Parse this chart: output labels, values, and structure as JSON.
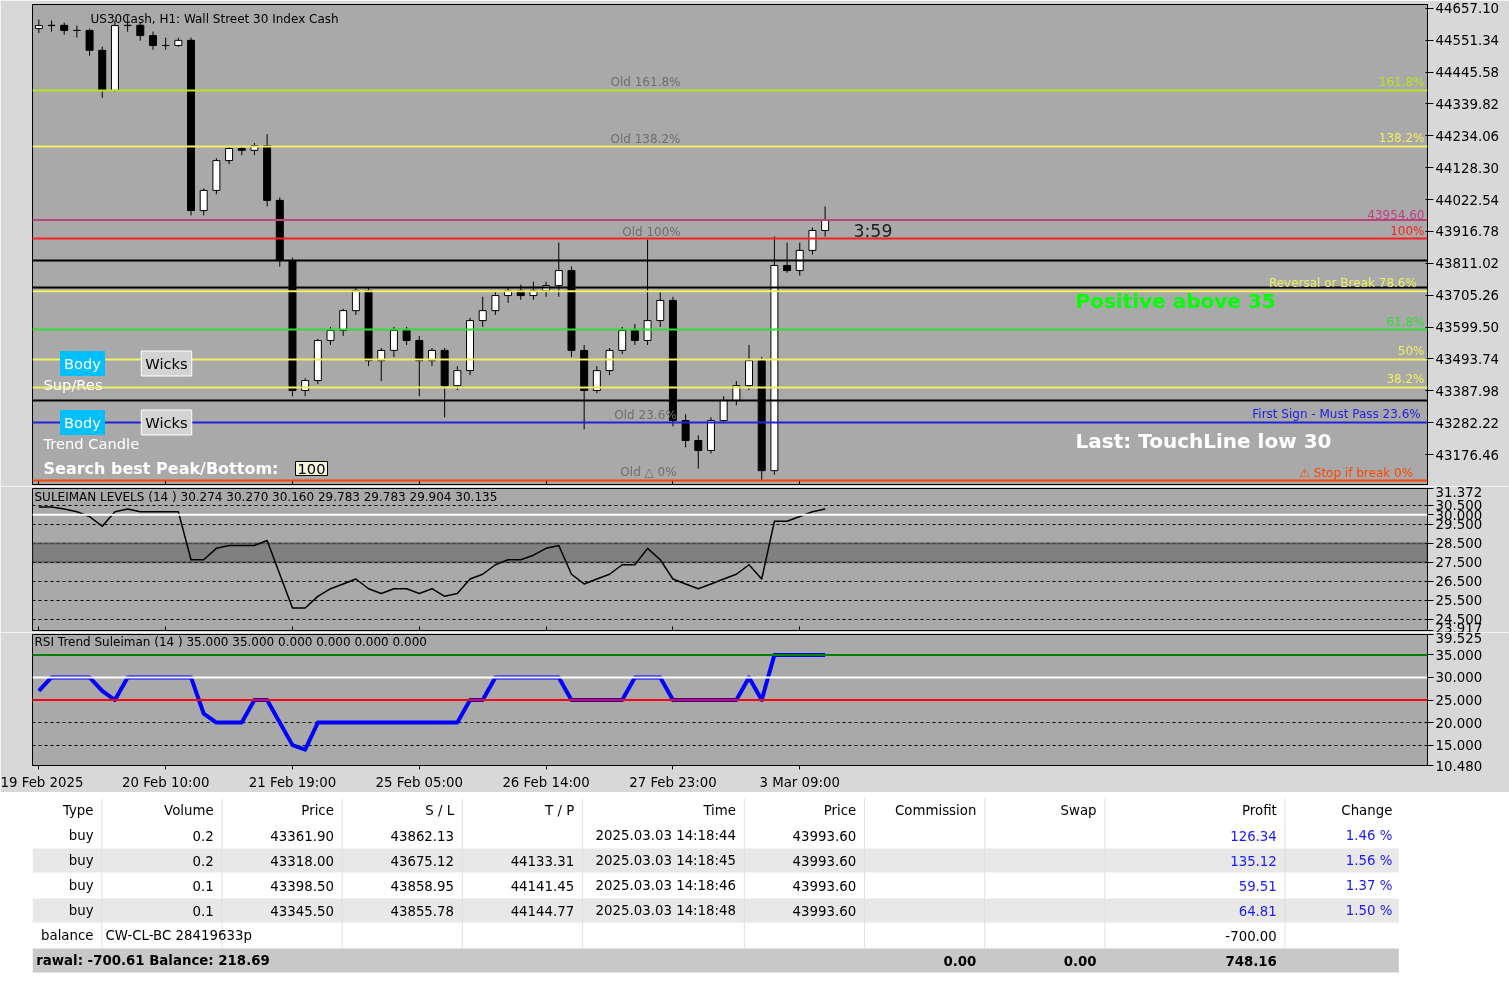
{
  "chart_data": [
    {
      "type": "candlestick",
      "title": "US30Cash, H1:  Wall Street 30 Index Cash",
      "categories": [
        "19 Feb 2025",
        null,
        null,
        null,
        null,
        null,
        null,
        null,
        null,
        null,
        "20 Feb 10:00",
        null,
        null,
        null,
        null,
        null,
        null,
        null,
        null,
        null,
        "21 Feb 19:00",
        null,
        null,
        null,
        null,
        null,
        null,
        null,
        null,
        null,
        "25 Feb 05:00",
        null,
        null,
        null,
        null,
        null,
        null,
        null,
        null,
        null,
        "26 Feb 14:00",
        null,
        null,
        null,
        null,
        null,
        null,
        null,
        null,
        null,
        "27 Feb 23:00",
        null,
        null,
        null,
        null,
        null,
        null,
        null,
        null,
        null,
        "3 Mar 09:00",
        null,
        null,
        null,
        null,
        null,
        null,
        null,
        null,
        null,
        null,
        null,
        null,
        null,
        null,
        null,
        null,
        null,
        null,
        null,
        null,
        null,
        null,
        null,
        null,
        null,
        null,
        null,
        null,
        null,
        null,
        null,
        null,
        null,
        null,
        null,
        null,
        null,
        null,
        null,
        null,
        null,
        null,
        null,
        null,
        null,
        null,
        null,
        null,
        null
      ],
      "ohlc": [
        [
          44590,
          44620,
          44575,
          44600
        ],
        [
          44600,
          44617,
          44580,
          44601
        ],
        [
          44601,
          44610,
          44570,
          44584
        ],
        [
          44584,
          44600,
          44560,
          44584
        ],
        [
          44584,
          44590,
          44500,
          44518
        ],
        [
          44518,
          44530,
          44360,
          44385
        ],
        [
          44385,
          44617,
          44380,
          44600
        ],
        [
          44600,
          44634,
          44580,
          44601
        ],
        [
          44601,
          44610,
          44550,
          44567
        ],
        [
          44567,
          44580,
          44520,
          44534
        ],
        [
          44534,
          44560,
          44520,
          44534
        ],
        [
          44534,
          44560,
          44530,
          44551
        ],
        [
          44551,
          44560,
          43970,
          43986
        ],
        [
          43986,
          44060,
          43970,
          44053
        ],
        [
          44053,
          44160,
          44040,
          44152
        ],
        [
          44152,
          44200,
          44140,
          44192
        ],
        [
          44192,
          44200,
          44170,
          44186
        ],
        [
          44186,
          44210,
          44170,
          44202
        ],
        [
          44202,
          44240,
          44000,
          44020
        ],
        [
          44020,
          44030,
          43800,
          43820
        ],
        [
          43820,
          43830,
          43370,
          43389
        ],
        [
          43389,
          43430,
          43370,
          43422
        ],
        [
          43422,
          43560,
          43410,
          43555
        ],
        [
          43555,
          43600,
          43540,
          43588
        ],
        [
          43588,
          43660,
          43570,
          43654
        ],
        [
          43654,
          43730,
          43640,
          43721
        ],
        [
          43721,
          43730,
          43470,
          43488
        ],
        [
          43488,
          43530,
          43420,
          43522
        ],
        [
          43522,
          43600,
          43500,
          43588
        ],
        [
          43588,
          43600,
          43540,
          43555
        ],
        [
          43555,
          43570,
          43370,
          43488
        ],
        [
          43488,
          43530,
          43470,
          43522
        ],
        [
          43522,
          43530,
          43300,
          43405
        ],
        [
          43405,
          43470,
          43390,
          43455
        ],
        [
          43455,
          43630,
          43440,
          43621
        ],
        [
          43621,
          43700,
          43600,
          43654
        ],
        [
          43654,
          43720,
          43640,
          43704
        ],
        [
          43704,
          43730,
          43680,
          43721
        ],
        [
          43721,
          43740,
          43690,
          43704
        ],
        [
          43704,
          43750,
          43690,
          43721
        ],
        [
          43721,
          43750,
          43700,
          43737
        ],
        [
          43737,
          43880,
          43700,
          43787
        ],
        [
          43787,
          43800,
          43500,
          43522
        ],
        [
          43522,
          43540,
          43260,
          43389
        ],
        [
          43389,
          43470,
          43380,
          43455
        ],
        [
          43455,
          43530,
          43440,
          43522
        ],
        [
          43522,
          43600,
          43510,
          43588
        ],
        [
          43588,
          43610,
          43540,
          43555
        ],
        [
          43555,
          43890,
          43540,
          43621
        ],
        [
          43621,
          43720,
          43600,
          43688
        ],
        [
          43688,
          43700,
          43270,
          43289
        ],
        [
          43289,
          43310,
          43200,
          43223
        ],
        [
          43223,
          43240,
          43130,
          43190
        ],
        [
          43190,
          43300,
          43180,
          43289
        ],
        [
          43289,
          43370,
          43280,
          43356
        ],
        [
          43356,
          43420,
          43340,
          43405
        ],
        [
          43405,
          43540,
          43390,
          43488
        ],
        [
          43488,
          43500,
          43090,
          43123
        ],
        [
          43123,
          43900,
          43110,
          43804
        ],
        [
          43804,
          43880,
          43780,
          43787
        ],
        [
          43787,
          43880,
          43770,
          43854
        ],
        [
          43854,
          43930,
          43840,
          43920
        ],
        [
          43920,
          44000,
          43900,
          43955
        ],
        null,
        null,
        null,
        null,
        null,
        null,
        null,
        null,
        null,
        null,
        null,
        null,
        null,
        null,
        null,
        null,
        null,
        null,
        null,
        null,
        null,
        null,
        null,
        null,
        null,
        null,
        null,
        null,
        null,
        null,
        null,
        null,
        null,
        null,
        null,
        null,
        null,
        null,
        null,
        null,
        null,
        null,
        null,
        null,
        null,
        null,
        null
      ],
      "colors": [
        "#ffffff",
        "#ffffff",
        "#000000",
        "#000000",
        "#000000",
        "#000000",
        "#ffffff",
        "#ffffff",
        "#000000",
        "#000000",
        "#000000",
        "#ffffff",
        "#000000",
        "#ffffff",
        "#ffffff",
        "#ffffff",
        "#000000",
        "#ffffff",
        "#000000",
        "#000000",
        "#000000",
        "#ffffff",
        "#ffffff",
        "#ffffff",
        "#ffffff",
        "#ffffff",
        "#000000",
        "#ffffff",
        "#ffffff",
        "#000000",
        "#000000",
        "#ffffff",
        "#000000",
        "#ffffff",
        "#ffffff",
        "#ffffff",
        "#ffffff",
        "#ffffff",
        "#000000",
        "#ffffff",
        "#ffffff",
        "#ffffff",
        "#000000",
        "#000000",
        "#ffffff",
        "#ffffff",
        "#ffffff",
        "#000000",
        "#ffffff",
        "#ffffff",
        "#000000",
        "#000000",
        "#000000",
        "#ffffff",
        "#ffffff",
        "#ffffff",
        "#ffffff",
        "#000000",
        "#ffffff",
        "#000000",
        "#ffffff",
        "#ffffff",
        "#ffffff",
        null,
        null,
        null,
        null,
        null,
        null,
        null,
        null,
        null,
        null,
        null,
        null,
        null,
        null,
        null,
        null,
        null,
        null,
        null,
        null,
        null,
        null,
        null,
        null,
        null,
        null,
        null,
        null,
        null,
        null,
        null,
        null,
        null,
        null,
        null,
        null,
        null,
        null,
        null,
        null,
        null,
        null,
        null,
        null,
        null,
        null,
        null
      ],
      "ylim": [
        43077,
        44670
      ],
      "yticks": [
        {
          "value": 44657.1,
          "label": "44657.10"
        },
        44551.34,
        44445.58,
        44339.82,
        44234.06,
        {
          "value": 44128.3,
          "label": "44128.30"
        },
        44022.54,
        43916.78,
        43811.02,
        43705.26,
        {
          "value": 43599.5,
          "label": "43599.50"
        },
        43493.74,
        43387.98,
        43282.22,
        43176.46
      ],
      "tick_labels": "y",
      "ref_lines": [
        {
          "axis": "y",
          "value": 44385,
          "color": "#b5e61d"
        },
        {
          "axis": "y",
          "value": 44199,
          "color": "#f0f060"
        },
        {
          "axis": "y",
          "value": 43954.6,
          "color": "#c04080"
        },
        {
          "axis": "y",
          "value": 43893,
          "color": "#ff2020"
        },
        {
          "axis": "y",
          "value": 43820,
          "color": "#000000"
        },
        {
          "axis": "y",
          "value": 43731,
          "color": "#000000"
        },
        {
          "axis": "y",
          "value": 43718,
          "color": "#f0f060"
        },
        {
          "axis": "y",
          "value": 43591,
          "color": "#33dd33"
        },
        {
          "axis": "y",
          "value": 43492,
          "color": "#f0f060"
        },
        {
          "axis": "y",
          "value": 43399,
          "color": "#f0f060"
        },
        {
          "axis": "y",
          "value": 43356,
          "color": "#000000"
        },
        {
          "axis": "y",
          "value": 43283,
          "color": "#2222dd"
        },
        {
          "axis": "y",
          "value": 43090,
          "color": "#ff4500"
        }
      ],
      "annotations": [
        "Body",
        "Wicks",
        "Sup/Res",
        "Body",
        "Wicks",
        "Trend Candle",
        "Search best Peak/Bottom:",
        "100",
        "3:59",
        "Positive above 35",
        "Last: TouchLine low 30",
        "Old 161.8%",
        "Old 138.2%",
        "Old 100%",
        "Old 23.6%",
        "Old △ 0%",
        {
          "text": "161.8%",
          "y": 44385
        },
        {
          "text": "138.2%",
          "y": 44199
        },
        {
          "text": "43954.60",
          "y": 43954.6
        },
        {
          "text": "100%",
          "y": 43893
        },
        {
          "text": "Reversal or Break   78.6%",
          "y": 43718
        },
        {
          "text": "61.8%",
          "y": 43591
        },
        {
          "text": "50%",
          "y": 43492
        },
        {
          "text": "38.2%",
          "y": 43399
        },
        {
          "text": "First Sign - Must Pass  23.6%",
          "y": 43283
        },
        {
          "text": "⚠ Stop if break    0%",
          "y": 43090
        }
      ]
    },
    {
      "type": "line",
      "title": "SULEIMAN LEVELS (14 )  30.274 30.270 30.160 29.783 29.783 29.904 30.135",
      "categories": [
        "19 Feb 2025",
        null,
        null,
        null,
        null,
        null,
        null,
        null,
        null,
        null,
        "20 Feb 10:00",
        null,
        null,
        null,
        null,
        null,
        null,
        null,
        null,
        null,
        "21 Feb 19:00",
        null,
        null,
        null,
        null,
        null,
        null,
        null,
        null,
        null,
        "25 Feb 05:00",
        null,
        null,
        null,
        null,
        null,
        null,
        null,
        null,
        null,
        "26 Feb 14:00",
        null,
        null,
        null,
        null,
        null,
        null,
        null,
        null,
        null,
        "27 Feb 23:00",
        null,
        null,
        null,
        null,
        null,
        null,
        null,
        null,
        null,
        "3 Mar 09:00",
        null,
        null,
        null,
        null,
        null,
        null,
        null,
        null,
        null,
        null,
        null,
        null,
        null,
        null,
        null,
        null,
        null,
        null,
        null,
        null,
        null,
        null,
        null,
        null,
        null,
        null,
        null,
        null,
        null,
        null,
        null,
        null,
        null,
        null,
        null,
        null,
        null,
        null,
        null,
        null,
        null,
        null,
        null,
        null,
        null,
        null,
        null,
        null,
        null
      ],
      "series": [
        {
          "color": "#000000",
          "values": [
            30.4,
            30.4,
            30.3,
            30.15,
            29.9,
            29.39,
            30.15,
            30.3,
            30.15,
            30.15,
            30.15,
            30.15,
            27.63,
            27.63,
            28.23,
            28.38,
            28.38,
            28.38,
            28.64,
            26.87,
            25.1,
            25.1,
            25.71,
            26.11,
            26.36,
            26.62,
            26.11,
            25.86,
            26.11,
            26.11,
            25.86,
            26.11,
            25.71,
            25.86,
            26.62,
            26.87,
            27.37,
            27.63,
            27.63,
            27.87,
            28.23,
            28.38,
            26.87,
            26.36,
            26.62,
            26.87,
            27.37,
            27.37,
            28.23,
            27.63,
            26.62,
            26.36,
            26.11,
            26.36,
            26.62,
            26.87,
            27.37,
            26.62,
            29.65,
            29.65,
            29.9,
            30.15,
            30.3,
            null,
            null,
            null,
            null,
            null,
            null,
            null,
            null,
            null,
            null,
            null,
            null,
            null,
            null,
            null,
            null,
            null,
            null,
            null,
            null,
            null,
            null,
            null,
            null,
            null,
            null,
            null,
            null,
            null,
            null,
            null,
            null,
            null,
            null,
            null,
            null,
            null,
            null,
            null,
            null,
            null,
            null,
            null,
            null,
            null,
            null,
            null
          ]
        }
      ],
      "ylim": [
        23.917,
        31.372
      ],
      "yticks": [
        {
          "value": 31.372,
          "label": "31.372"
        },
        {
          "value": 30.5,
          "label": "30.500"
        },
        {
          "value": 30,
          "label": "30.000"
        },
        {
          "value": 29.5,
          "label": "29.500"
        },
        {
          "value": 28.5,
          "label": "28.500"
        },
        {
          "value": 27.5,
          "label": "27.500"
        },
        {
          "value": 26.5,
          "label": "26.500"
        },
        {
          "value": 25.5,
          "label": "25.500"
        },
        {
          "value": 24.5,
          "label": "24.500"
        },
        {
          "value": 23.917,
          "label": "23.917"
        }
      ],
      "tick_labels": "y",
      "grid": "y",
      "ref_lines": [
        {
          "axis": "y",
          "value": 30,
          "color": "#ffffff"
        }
      ],
      "bands": [
        {
          "axis": "y",
          "from": 27.5,
          "to": 28.5,
          "color": "#808080"
        }
      ]
    },
    {
      "type": "line",
      "title": "RSI Trend Suleiman (14 ) 35.000 35.000 0.000 0.000 0.000 0.000",
      "categories": [
        "19 Feb 2025",
        null,
        null,
        null,
        null,
        null,
        null,
        null,
        null,
        null,
        "20 Feb 10:00",
        null,
        null,
        null,
        null,
        null,
        null,
        null,
        null,
        null,
        "21 Feb 19:00",
        null,
        null,
        null,
        null,
        null,
        null,
        null,
        null,
        null,
        "25 Feb 05:00",
        null,
        null,
        null,
        null,
        null,
        null,
        null,
        null,
        null,
        "26 Feb 14:00",
        null,
        null,
        null,
        null,
        null,
        null,
        null,
        null,
        null,
        "27 Feb 23:00",
        null,
        null,
        null,
        null,
        null,
        null,
        null,
        null,
        null,
        "3 Mar 09:00",
        null,
        null,
        null,
        null,
        null,
        null,
        null,
        null,
        null,
        null,
        null,
        null,
        null,
        null,
        null,
        null,
        null,
        null,
        null,
        null,
        null,
        null,
        null,
        null,
        null,
        null,
        null,
        null,
        null,
        null,
        null,
        null,
        null,
        null,
        null,
        null,
        null,
        null,
        null,
        null,
        null,
        null,
        null,
        null,
        null,
        null,
        null,
        null,
        null
      ],
      "series": [
        {
          "color": "#0000ff",
          "values": [
            27,
            30,
            30,
            30,
            30,
            27,
            25,
            30,
            30,
            30,
            30,
            30,
            30,
            22,
            20,
            20,
            20,
            25,
            25,
            20,
            15,
            14,
            20,
            20,
            20,
            20,
            20,
            20,
            20,
            20,
            20,
            20,
            20,
            20,
            25,
            25,
            30,
            30,
            30,
            30,
            30,
            30,
            25,
            25,
            25,
            25,
            25,
            30,
            30,
            30,
            25,
            25,
            25,
            25,
            25,
            25,
            30,
            25,
            35,
            35,
            35,
            35,
            35,
            null,
            null,
            null,
            null,
            null,
            null,
            null,
            null,
            null,
            null,
            null,
            null,
            null,
            null,
            null,
            null,
            null,
            null,
            null,
            null,
            null,
            null,
            null,
            null,
            null,
            null,
            null,
            null,
            null,
            null,
            null,
            null,
            null,
            null,
            null,
            null,
            null,
            null,
            null,
            null,
            null,
            null,
            null,
            null,
            null,
            null,
            null
          ]
        }
      ],
      "ylim": [
        10.48,
        39.525
      ],
      "yticks": [
        {
          "value": 39.525,
          "label": "39.525"
        },
        {
          "value": 35,
          "label": "35.000"
        },
        {
          "value": 30,
          "label": "30.000"
        },
        {
          "value": 25,
          "label": "25.000"
        },
        {
          "value": 20,
          "label": "20.000"
        },
        {
          "value": 15,
          "label": "15.000"
        },
        {
          "value": 10.48,
          "label": "10.480"
        }
      ],
      "grid": "y",
      "ref_lines": [
        {
          "axis": "y",
          "value": 35,
          "color": "#008000"
        },
        {
          "axis": "y",
          "value": 30,
          "color": "#ffffff"
        },
        {
          "axis": "y",
          "value": 25,
          "color": "#ff0000"
        }
      ]
    },
    {
      "type": "other",
      "annotations": [
        "Type",
        "Volume",
        "Price",
        "S / L",
        "T / P",
        "Time",
        "Price",
        "Commission",
        "Swap",
        "Profit",
        "Change",
        "buy",
        "0.2",
        "43361.90",
        "43862.13",
        "2025.03.03 14:18:44",
        "43993.60",
        "126.34",
        "1.46 %",
        "buy",
        "0.2",
        "43318.00",
        "43675.12",
        "44133.31",
        "2025.03.03 14:18:45",
        "43993.60",
        "135.12",
        "1.56 %",
        "buy",
        "0.1",
        "43398.50",
        "43858.95",
        "44141.45",
        "2025.03.03 14:18:46",
        "43993.60",
        "59.51",
        "1.37 %",
        "buy",
        "0.1",
        "43345.50",
        "43855.78",
        "44144.77",
        "2025.03.03 14:18:48",
        "43993.60",
        "64.81",
        "1.50 %",
        "balance",
        "CW-CL-BC 28419633p",
        "-700.00",
        "rawal: -700.61  Balance: 218.69",
        "0.00",
        "0.00",
        "748.16"
      ]
    }
  ]
}
